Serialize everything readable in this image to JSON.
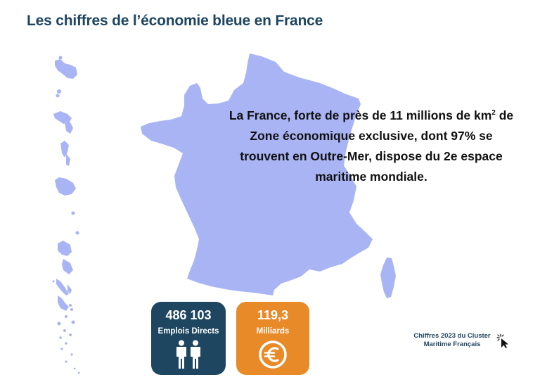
{
  "page": {
    "title": "Les chiffres de l’économie bleue en France"
  },
  "statement": {
    "text_before_sup": "La France, forte de près de 11 millions de km",
    "sup": "2",
    "text_after_sup": " de Zone économique exclusive, dont 97% se trouvent en Outre-Mer, dispose du 2e espace maritime mondiale."
  },
  "cards": {
    "jobs": {
      "value": "486 103",
      "label": "Emplois Directs",
      "icon": "people-icon",
      "color": "#1f4660"
    },
    "money": {
      "value": "119,3",
      "label": "Milliards",
      "icon": "euro-icon",
      "color": "#e98a28"
    }
  },
  "source": {
    "line1": "Chiffres 2023 du Cluster",
    "line2": "Maritime Français",
    "icon": "click-cursor-icon"
  },
  "map": {
    "fill_color": "#a9b4f5"
  }
}
